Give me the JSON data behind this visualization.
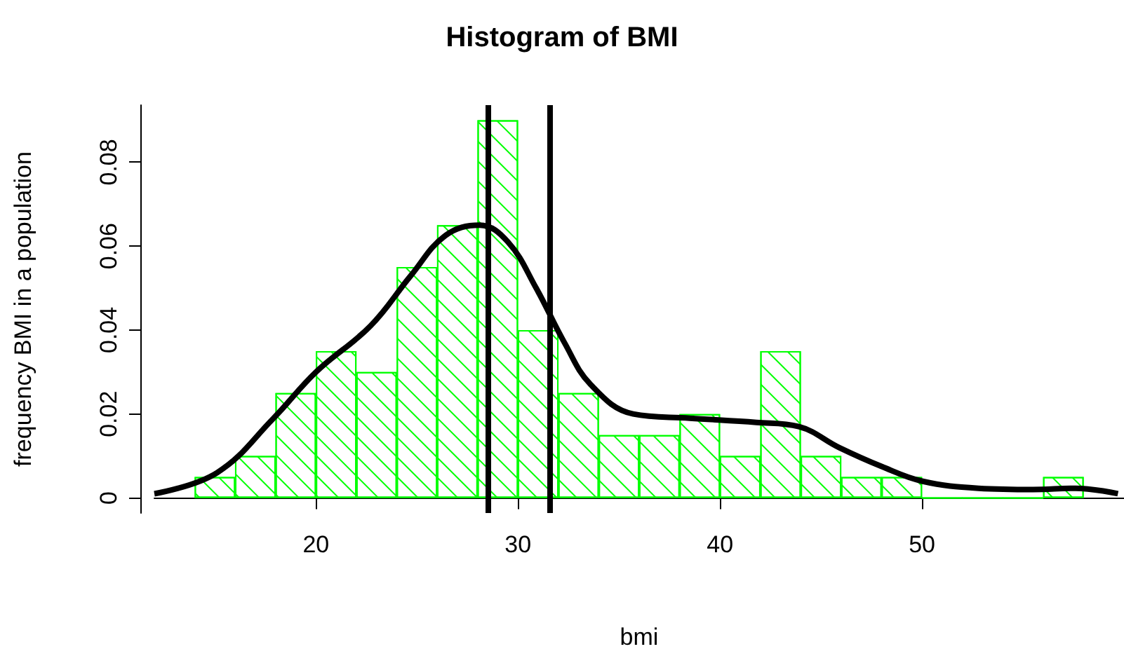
{
  "chart_data": {
    "type": "histogram",
    "title": "Histogram of BMI",
    "xlabel": "bmi",
    "ylabel": "frequency BMI in a population",
    "xlim": [
      12,
      60
    ],
    "ylim": [
      -0.0036,
      0.0936
    ],
    "xticks": [
      20,
      30,
      40,
      50
    ],
    "yticks": [
      0,
      0.02,
      0.04,
      0.06,
      0.08
    ],
    "grid": false,
    "bins": [
      14,
      16,
      18,
      20,
      22,
      24,
      26,
      28,
      30,
      32,
      34,
      36,
      38,
      40,
      42,
      44,
      46,
      48,
      50,
      52,
      54,
      56,
      58
    ],
    "values": [
      0.005,
      0.01,
      0.025,
      0.035,
      0.03,
      0.055,
      0.065,
      0.09,
      0.04,
      0.025,
      0.015,
      0.015,
      0.02,
      0.01,
      0.035,
      0.01,
      0.005,
      0.005,
      0,
      0,
      0,
      0.005
    ],
    "color": "#00ff00",
    "series": [
      {
        "type": "line",
        "color": "#000000",
        "marker": "none",
        "x": [
          12,
          15.1,
          17.9,
          20,
          22.7,
          24.7,
          26.4,
          28.1,
          29.5,
          30.9,
          32.3,
          33.6,
          35.7,
          38.5,
          41.8,
          43.9,
          45.9,
          48,
          50,
          52.8,
          55.5,
          57.6,
          59.7
        ],
        "values": [
          0.001,
          0.006,
          0.019,
          0.03,
          0.041,
          0.053,
          0.0625,
          0.065,
          0.061,
          0.05,
          0.037,
          0.027,
          0.02,
          0.019,
          0.018,
          0.017,
          0.012,
          0.0075,
          0.004,
          0.0023,
          0.002,
          0.0023,
          0.001
        ]
      }
    ],
    "ref_lines": [
      {
        "axis": "x",
        "value": 28.5,
        "color": "#000000"
      },
      {
        "axis": "x",
        "value": 31.6,
        "color": "#000000"
      }
    ]
  }
}
